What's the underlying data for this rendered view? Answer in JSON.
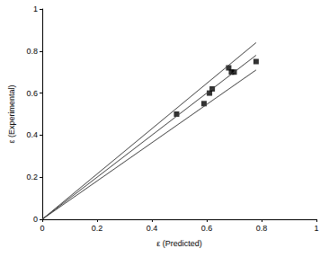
{
  "chart_data": {
    "type": "scatter",
    "x_label": "ε (Predicted)",
    "y_label": "ε (Experimental)",
    "xlim": [
      0,
      1
    ],
    "xticks": [
      0,
      0.2,
      0.4,
      0.6,
      0.8,
      1
    ],
    "ylim": [
      0,
      1
    ],
    "yticks": [
      0,
      0.2,
      0.4,
      0.6,
      0.8,
      1
    ],
    "grid": false,
    "series": [
      {
        "type": "scatter",
        "marker": "square",
        "color": "#000000",
        "x": [
          0.49,
          0.59,
          0.61,
          0.62,
          0.68,
          0.69,
          0.7,
          0.78
        ],
        "values": [
          0.5,
          0.55,
          0.6,
          0.62,
          0.72,
          0.7,
          0.7,
          0.75
        ]
      },
      {
        "type": "line",
        "color": "#404040",
        "line_style": "solid",
        "x": [
          0,
          0.78
        ],
        "values": [
          0,
          0.84
        ]
      },
      {
        "type": "line",
        "color": "#404040",
        "line_style": "solid",
        "x": [
          0,
          0.78
        ],
        "values": [
          0,
          0.78
        ]
      },
      {
        "type": "line",
        "color": "#404040",
        "line_style": "solid",
        "x": [
          0,
          0.78
        ],
        "values": [
          0,
          0.71
        ]
      }
    ]
  }
}
